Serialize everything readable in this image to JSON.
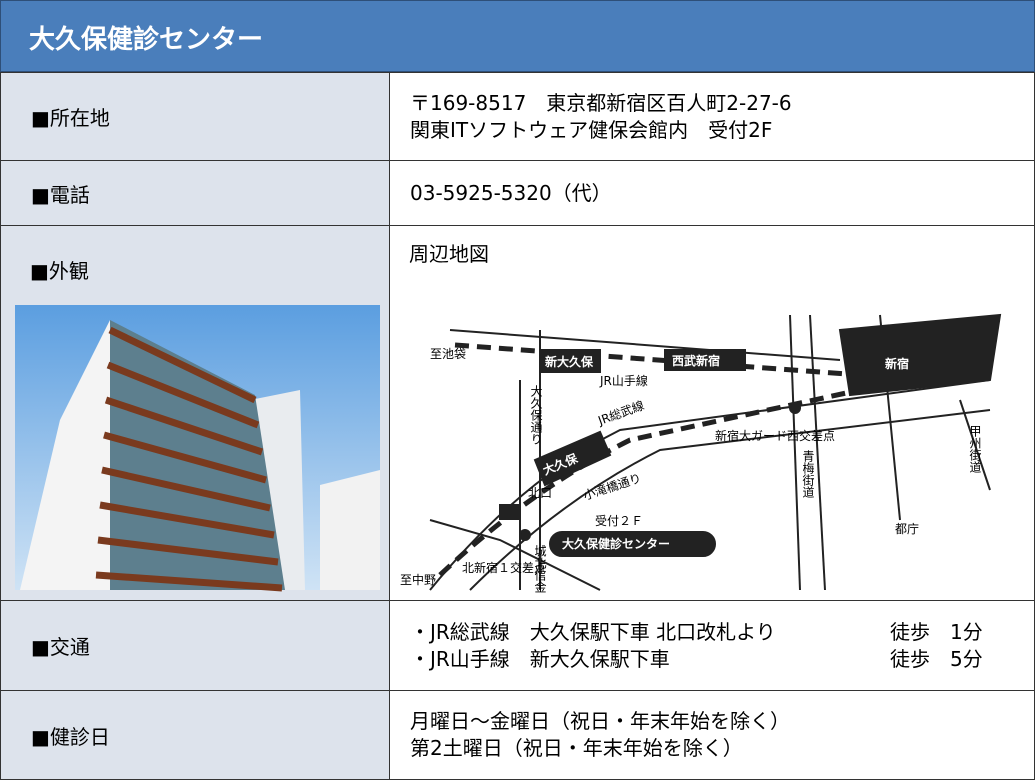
{
  "header": {
    "title": "大久保健診センター"
  },
  "table": {
    "rows": [
      {
        "label": "■所在地",
        "lines": [
          "〒169-8517　東京都新宿区百人町2-27-6",
          "関東ITソフトウェア健保会館内　受付2F"
        ]
      },
      {
        "label": "■電話",
        "lines": [
          "03-5925-5320（代）"
        ]
      },
      {
        "label": "■外観",
        "lines": [
          "周辺地図"
        ]
      },
      {
        "label": "■交通",
        "lines": [
          "・JR総武線　大久保駅下車 北口改札より",
          "・JR山手線　新大久保駅下車"
        ],
        "walk": [
          "徒歩　1分",
          "徒歩　5分"
        ]
      },
      {
        "label": "■健診日",
        "lines": [
          "月曜日～金曜日（祝日・年末年始を除く）",
          "第2土曜日（祝日・年末年始を除く）"
        ]
      }
    ]
  },
  "map": {
    "labels": [
      "至池袋",
      "新大久保",
      "西武新宿",
      "新宿",
      "JR山手線",
      "大久保通り",
      "JR総武線",
      "大久保",
      "小滝橋通り",
      "新宿大ガード西交差点",
      "青梅街道",
      "甲州街道",
      "北口",
      "受付２Ｆ",
      "大久保健診センター",
      "都庁",
      "至中野",
      "北新宿１交差点",
      "城北信金"
    ]
  }
}
